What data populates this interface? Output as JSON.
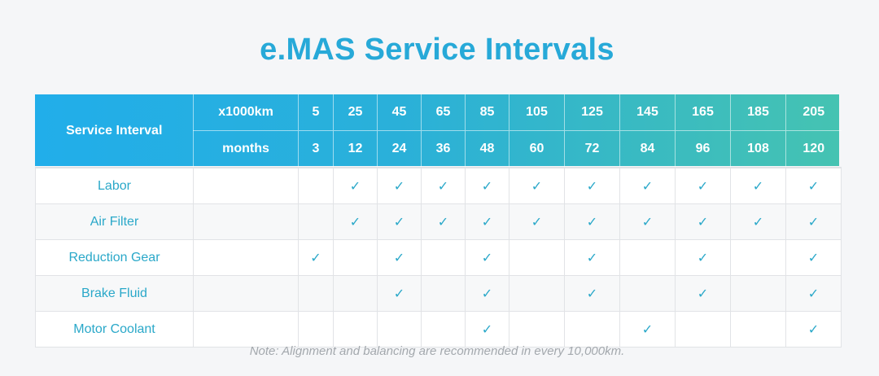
{
  "title": "e.MAS Service Intervals",
  "header": {
    "label": "Service Interval",
    "km_label": "x1000km",
    "months_label": "months",
    "km": [
      "5",
      "25",
      "45",
      "65",
      "85",
      "105",
      "125",
      "145",
      "165",
      "185",
      "205"
    ],
    "months": [
      "3",
      "12",
      "24",
      "36",
      "48",
      "60",
      "72",
      "84",
      "96",
      "108",
      "120"
    ]
  },
  "check_symbol": "✓",
  "rows": [
    {
      "name": "Labor",
      "checks": [
        false,
        true,
        true,
        true,
        true,
        true,
        true,
        true,
        true,
        true,
        true
      ]
    },
    {
      "name": "Air Filter",
      "checks": [
        false,
        true,
        true,
        true,
        true,
        true,
        true,
        true,
        true,
        true,
        true
      ]
    },
    {
      "name": "Reduction Gear",
      "checks": [
        true,
        false,
        true,
        false,
        true,
        false,
        true,
        false,
        true,
        false,
        true
      ]
    },
    {
      "name": "Brake Fluid",
      "checks": [
        false,
        false,
        true,
        false,
        true,
        false,
        true,
        false,
        true,
        false,
        true
      ]
    },
    {
      "name": "Motor Coolant",
      "checks": [
        false,
        false,
        false,
        false,
        true,
        false,
        false,
        true,
        false,
        false,
        true
      ]
    }
  ],
  "note": "Note: Alignment and balancing are recommended in every 10,000km.",
  "colors": {
    "accent": "#27a9d8",
    "header_start": "#21aeea",
    "header_end": "#45c3b2",
    "check": "#2aa8c9",
    "note": "#a3a8ad"
  }
}
